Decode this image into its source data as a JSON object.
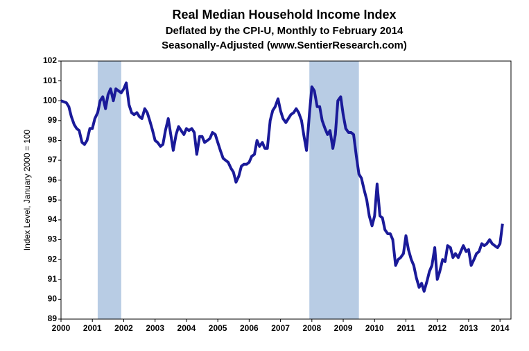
{
  "chart_data": {
    "type": "line",
    "title": "Real Median Household Income Index",
    "subtitle": [
      "Deflated by the CPI-U, Monthly to February 2014",
      "Seasonally-Adjusted (www.SentierResearch.com)"
    ],
    "y_label": "Index Level, January 2000 = 100",
    "xlim": [
      2000,
      2014.35
    ],
    "ylim": [
      89,
      102
    ],
    "xticks": [
      2000,
      2001,
      2002,
      2003,
      2004,
      2005,
      2006,
      2007,
      2008,
      2009,
      2010,
      2011,
      2012,
      2013,
      2014
    ],
    "yticks": [
      89,
      90,
      91,
      92,
      93,
      94,
      95,
      96,
      97,
      98,
      99,
      100,
      101,
      102
    ],
    "shaded_periods": [
      [
        2001.17,
        2001.92
      ],
      [
        2007.92,
        2009.5
      ]
    ],
    "shade_color": "#b8cce4",
    "series": [
      {
        "color": "#1a1a99",
        "x": [
          2000.0,
          2000.17,
          2000.25,
          2000.33,
          2000.42,
          2000.5,
          2000.58,
          2000.67,
          2000.75,
          2000.83,
          2000.92,
          2001.0,
          2001.08,
          2001.17,
          2001.25,
          2001.33,
          2001.42,
          2001.5,
          2001.58,
          2001.67,
          2001.75,
          2001.83,
          2001.92,
          2002.0,
          2002.08,
          2002.17,
          2002.25,
          2002.33,
          2002.42,
          2002.5,
          2002.58,
          2002.67,
          2002.75,
          2002.83,
          2002.92,
          2003.0,
          2003.08,
          2003.17,
          2003.25,
          2003.33,
          2003.42,
          2003.5,
          2003.58,
          2003.67,
          2003.75,
          2003.83,
          2003.92,
          2004.0,
          2004.08,
          2004.17,
          2004.25,
          2004.33,
          2004.42,
          2004.5,
          2004.58,
          2004.67,
          2004.75,
          2004.83,
          2004.92,
          2005.0,
          2005.08,
          2005.17,
          2005.25,
          2005.33,
          2005.42,
          2005.5,
          2005.58,
          2005.67,
          2005.75,
          2005.83,
          2005.92,
          2006.0,
          2006.08,
          2006.17,
          2006.25,
          2006.33,
          2006.42,
          2006.5,
          2006.58,
          2006.67,
          2006.75,
          2006.83,
          2006.92,
          2007.0,
          2007.08,
          2007.17,
          2007.25,
          2007.33,
          2007.42,
          2007.5,
          2007.58,
          2007.67,
          2007.75,
          2007.83,
          2007.92,
          2008.0,
          2008.08,
          2008.17,
          2008.25,
          2008.33,
          2008.42,
          2008.5,
          2008.58,
          2008.67,
          2008.75,
          2008.83,
          2008.92,
          2009.0,
          2009.08,
          2009.17,
          2009.25,
          2009.33,
          2009.42,
          2009.5,
          2009.58,
          2009.67,
          2009.75,
          2009.83,
          2009.92,
          2010.0,
          2010.08,
          2010.17,
          2010.25,
          2010.33,
          2010.42,
          2010.5,
          2010.58,
          2010.67,
          2010.75,
          2010.83,
          2010.92,
          2011.0,
          2011.08,
          2011.17,
          2011.25,
          2011.33,
          2011.42,
          2011.5,
          2011.58,
          2011.67,
          2011.75,
          2011.83,
          2011.92,
          2012.0,
          2012.08,
          2012.17,
          2012.25,
          2012.33,
          2012.42,
          2012.5,
          2012.58,
          2012.67,
          2012.75,
          2012.83,
          2012.92,
          2013.0,
          2013.08,
          2013.17,
          2013.25,
          2013.33,
          2013.42,
          2013.5,
          2013.58,
          2013.67,
          2013.75,
          2013.83,
          2013.92,
          2014.0,
          2014.08
        ],
        "values": [
          100.0,
          99.9,
          99.7,
          99.2,
          98.8,
          98.6,
          98.5,
          97.9,
          97.8,
          98.0,
          98.6,
          98.6,
          99.1,
          99.4,
          100.0,
          100.2,
          99.6,
          100.3,
          100.6,
          100.0,
          100.6,
          100.5,
          100.4,
          100.6,
          100.9,
          99.8,
          99.4,
          99.3,
          99.4,
          99.2,
          99.1,
          99.6,
          99.4,
          99.0,
          98.5,
          98.0,
          97.9,
          97.7,
          97.8,
          98.5,
          99.1,
          98.3,
          97.5,
          98.3,
          98.7,
          98.5,
          98.3,
          98.6,
          98.5,
          98.6,
          98.4,
          97.3,
          98.2,
          98.2,
          97.9,
          98.0,
          98.1,
          98.4,
          98.3,
          97.9,
          97.5,
          97.1,
          97.0,
          96.9,
          96.6,
          96.4,
          95.9,
          96.2,
          96.7,
          96.8,
          96.8,
          96.9,
          97.2,
          97.3,
          98.0,
          97.7,
          97.9,
          97.6,
          97.6,
          99.0,
          99.5,
          99.7,
          100.1,
          99.5,
          99.1,
          98.9,
          99.1,
          99.3,
          99.4,
          99.6,
          99.4,
          99.0,
          98.2,
          97.5,
          99.3,
          100.7,
          100.5,
          99.7,
          99.7,
          99.0,
          98.6,
          98.3,
          98.5,
          97.6,
          98.3,
          100.0,
          100.2,
          99.3,
          98.6,
          98.4,
          98.4,
          98.3,
          97.2,
          96.3,
          96.1,
          95.5,
          95.0,
          94.2,
          93.7,
          94.2,
          95.8,
          94.2,
          94.1,
          93.5,
          93.3,
          93.3,
          93.0,
          91.7,
          92.0,
          92.1,
          92.3,
          93.2,
          92.5,
          92.0,
          91.7,
          91.1,
          90.6,
          90.8,
          90.4,
          90.9,
          91.4,
          91.7,
          92.6,
          91.0,
          91.4,
          92.0,
          91.9,
          92.7,
          92.6,
          92.1,
          92.3,
          92.1,
          92.4,
          92.7,
          92.4,
          92.5,
          91.7,
          92.0,
          92.3,
          92.4,
          92.8,
          92.7,
          92.8,
          93.0,
          92.8,
          92.7,
          92.6,
          92.8,
          93.8
        ]
      }
    ]
  }
}
